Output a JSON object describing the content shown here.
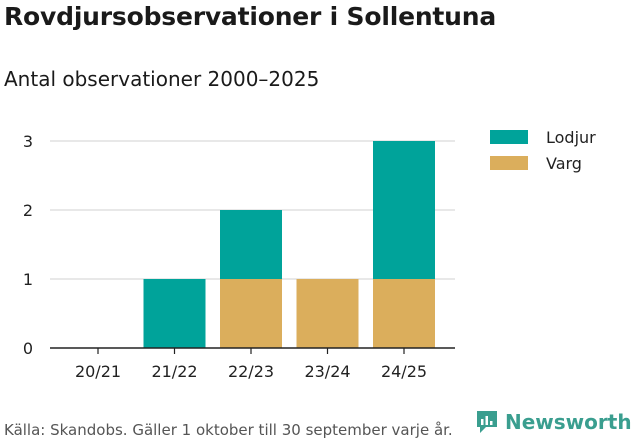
{
  "title": "Rovdjursobservationer i Sollentuna",
  "subtitle": "Antal observationer 2000–2025",
  "source": "Källa: Skandobs. Gäller 1 oktober till 30 september varje år.",
  "logo": {
    "text": "Newsworthy",
    "color": "#3a9e8f"
  },
  "colors": {
    "Lodjur": "#00a39a",
    "Varg": "#dbae5c"
  },
  "chart_data": {
    "type": "bar",
    "stacked": true,
    "categories": [
      "20/21",
      "21/22",
      "22/23",
      "23/24",
      "24/25"
    ],
    "series": [
      {
        "name": "Varg",
        "values": [
          0,
          0,
          1,
          1,
          1
        ]
      },
      {
        "name": "Lodjur",
        "values": [
          0,
          1,
          1,
          0,
          2
        ]
      }
    ],
    "legend": [
      "Lodjur",
      "Varg"
    ],
    "y_ticks": [
      "0",
      "1",
      "2",
      "3"
    ],
    "ylim": [
      0,
      3
    ],
    "grid": true,
    "legend_position": "top-right",
    "title": "Rovdjursobservationer i Sollentuna",
    "xlabel": "",
    "ylabel": ""
  }
}
